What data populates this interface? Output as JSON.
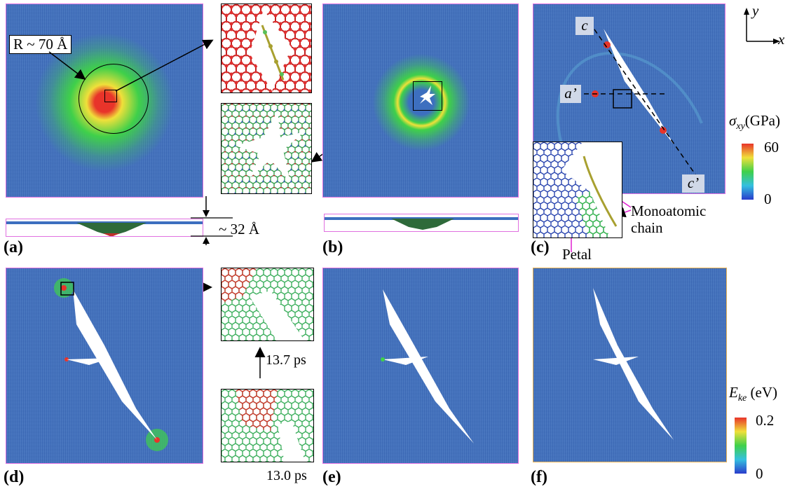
{
  "panels": {
    "a": "(a)",
    "b": "(b)",
    "c": "(c)",
    "d": "(d)",
    "e": "(e)",
    "f": "(f)"
  },
  "annotations": {
    "radius": "R ~ 70 Å",
    "thickness": "~ 32 Å",
    "monoatomic_line1": "Monoatomic",
    "monoatomic_line2": "chain",
    "petal": "Petal",
    "time_top": "13.7 ps",
    "time_bottom": "13.0 ps",
    "path_c": "c",
    "path_c_prime": "c’",
    "path_a_prime": "a’"
  },
  "axes": {
    "y": "y",
    "x": "x"
  },
  "stress_scale": {
    "symbol": "σ",
    "subscript": "xy",
    "unit": "(GPa)",
    "max": "60",
    "min": "0"
  },
  "kinetic_scale": {
    "symbol": "E",
    "subscript": "ke",
    "unit": " (eV)",
    "max": "0.2",
    "min": "0"
  },
  "colors": {
    "background_field": "#3d6fbf",
    "frame": "#e070e0",
    "frame_f": "#e8b050",
    "colormap": [
      "#2a3ccc",
      "#34c0e0",
      "#3fd04a",
      "#f0e03a",
      "#e8342a"
    ]
  }
}
